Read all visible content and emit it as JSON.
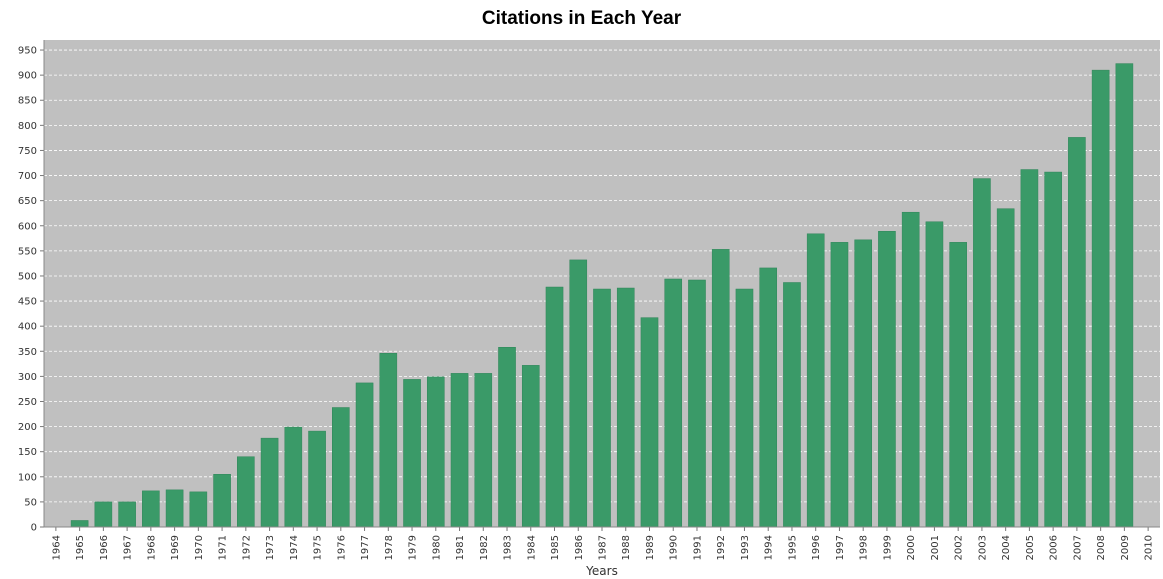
{
  "chart_data": {
    "type": "bar",
    "title": "Citations in Each Year",
    "xlabel": "Years",
    "ylabel": "",
    "ylim": [
      0,
      970
    ],
    "yticks": [
      0,
      50,
      100,
      150,
      200,
      250,
      300,
      350,
      400,
      450,
      500,
      550,
      600,
      650,
      700,
      750,
      800,
      850,
      900,
      950
    ],
    "grid": true,
    "legend": "none",
    "categories": [
      "1964",
      "1965",
      "1966",
      "1967",
      "1968",
      "1969",
      "1970",
      "1971",
      "1972",
      "1973",
      "1974",
      "1975",
      "1976",
      "1977",
      "1978",
      "1979",
      "1980",
      "1981",
      "1982",
      "1983",
      "1984",
      "1985",
      "1986",
      "1987",
      "1988",
      "1989",
      "1990",
      "1991",
      "1992",
      "1993",
      "1994",
      "1995",
      "1996",
      "1997",
      "1998",
      "1999",
      "2000",
      "2001",
      "2002",
      "2003",
      "2004",
      "2005",
      "2006",
      "2007",
      "2008",
      "2009",
      "2010"
    ],
    "values": [
      0,
      13,
      50,
      50,
      72,
      74,
      70,
      105,
      140,
      177,
      199,
      191,
      238,
      287,
      346,
      294,
      299,
      306,
      306,
      358,
      322,
      478,
      532,
      474,
      476,
      417,
      494,
      492,
      553,
      474,
      516,
      487,
      584,
      567,
      572,
      589,
      627,
      608,
      567,
      694,
      634,
      712,
      707,
      776,
      910,
      923,
      0
    ],
    "colors": {
      "bar": "#3a9a68",
      "bar_edge": "#2f8559",
      "plot_background": "#c0c0c0",
      "grid": "#ffffff"
    }
  }
}
